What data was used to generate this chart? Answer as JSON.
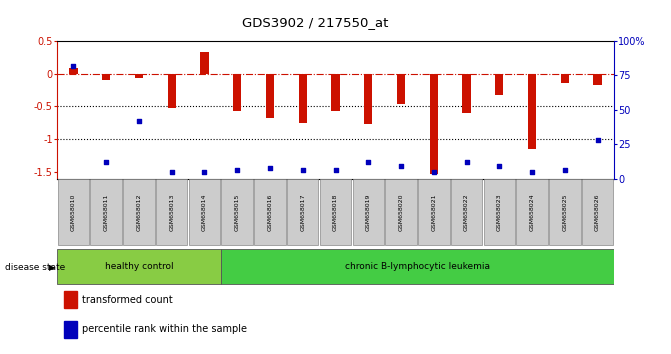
{
  "title": "GDS3902 / 217550_at",
  "samples": [
    "GSM658010",
    "GSM658011",
    "GSM658012",
    "GSM658013",
    "GSM658014",
    "GSM658015",
    "GSM658016",
    "GSM658017",
    "GSM658018",
    "GSM658019",
    "GSM658020",
    "GSM658021",
    "GSM658022",
    "GSM658023",
    "GSM658024",
    "GSM658025",
    "GSM658026"
  ],
  "bar_values": [
    0.08,
    -0.1,
    -0.07,
    -0.52,
    0.33,
    -0.57,
    -0.68,
    -0.75,
    -0.57,
    -0.77,
    -0.47,
    -1.52,
    -0.6,
    -0.33,
    -1.15,
    -0.14,
    -0.17
  ],
  "dot_percentiles": [
    82,
    12,
    42,
    5,
    5,
    6,
    8,
    6,
    6,
    12,
    9,
    5,
    12,
    9,
    5,
    6,
    28
  ],
  "healthy_count": 5,
  "disease_label": "disease state",
  "group1_label": "healthy control",
  "group2_label": "chronic B-lymphocytic leukemia",
  "legend1_label": "transformed count",
  "legend2_label": "percentile rank within the sample",
  "bar_color": "#cc1100",
  "dot_color": "#0000bb",
  "ylim_left": [
    -1.6,
    0.5
  ],
  "ylim_right": [
    0,
    100
  ],
  "right_ticks": [
    0,
    25,
    50,
    75,
    100
  ],
  "right_tick_labels": [
    "0",
    "25",
    "50",
    "75",
    "100%"
  ],
  "left_ticks": [
    -1.5,
    -1.0,
    -0.5,
    0.0,
    0.5
  ],
  "left_tick_labels": [
    "-1.5",
    "-1",
    "-0.5",
    "0",
    "0.5"
  ],
  "hline_y": 0.0,
  "dotted_lines": [
    -0.5,
    -1.0
  ],
  "healthy_color": "#88cc44",
  "leukemia_color": "#44cc44",
  "sample_box_color": "#cccccc",
  "bar_width": 0.25
}
